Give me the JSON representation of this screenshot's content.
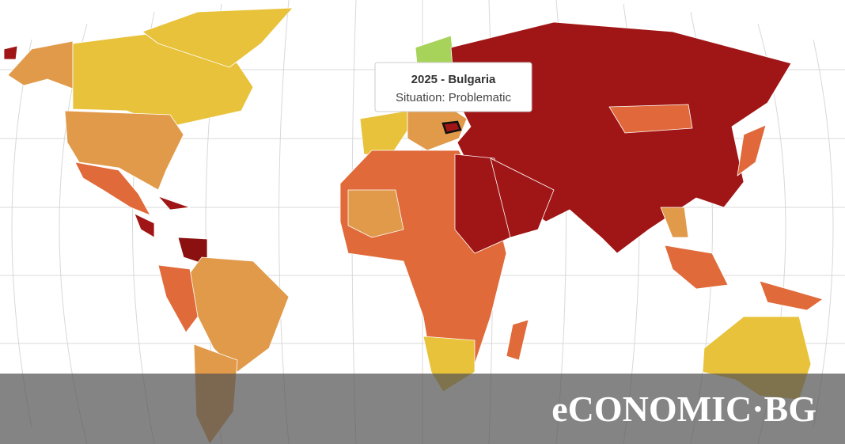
{
  "tooltip": {
    "title": "2025 - Bulgaria",
    "subtitle": "Situation: Problematic"
  },
  "logo": {
    "text": "eCONOMIC·BG"
  }
}
